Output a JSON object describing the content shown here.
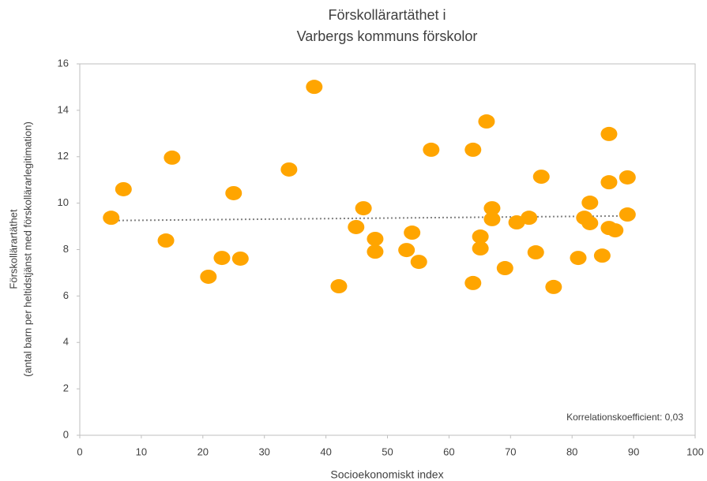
{
  "chart_data": {
    "type": "scatter",
    "title": [
      "Förskollärartäthet i",
      "Varbergs kommuns förskolor"
    ],
    "xlabel": "Socioekonomiskt index",
    "ylabel": [
      "Förskollärartäthet",
      "(antal barn per heltidstjänst med förskollärarlegitimation)"
    ],
    "annotation": "Korrelationskoefficient: 0,03",
    "color": "#ffa500",
    "x": [
      5.1,
      7.1,
      14.0,
      15.0,
      20.9,
      23.1,
      25.0,
      26.1,
      34.0,
      38.1,
      42.1,
      44.9,
      46.1,
      48.0,
      48.0,
      53.1,
      54.0,
      55.1,
      57.1,
      63.9,
      63.9,
      65.1,
      65.1,
      66.1,
      67.0,
      67.0,
      69.1,
      71.0,
      73.0,
      74.1,
      75.0,
      77.0,
      81.0,
      82.0,
      82.9,
      82.9,
      84.9,
      86.0,
      86.0,
      86.0,
      87.0,
      89.0,
      89.0
    ],
    "values": [
      9.37,
      10.6,
      8.39,
      11.96,
      6.83,
      7.64,
      10.43,
      7.61,
      11.45,
      15.01,
      6.42,
      8.97,
      9.78,
      8.46,
      7.91,
      7.98,
      8.73,
      7.47,
      12.3,
      12.3,
      6.56,
      8.56,
      8.05,
      13.52,
      9.78,
      9.31,
      7.2,
      9.17,
      9.37,
      7.88,
      11.14,
      6.39,
      7.64,
      9.37,
      10.02,
      9.14,
      7.74,
      12.98,
      10.9,
      8.93,
      8.83,
      11.11,
      9.51
    ],
    "trendline": {
      "color": "#808080",
      "x": [
        5,
        89
      ],
      "values": [
        9.25,
        9.45
      ]
    },
    "xlim": [
      0,
      100
    ],
    "xticks": [
      0,
      10,
      20,
      30,
      40,
      50,
      60,
      70,
      80,
      90,
      100
    ],
    "ylim": [
      0,
      16
    ],
    "yticks": [
      0,
      2,
      4,
      6,
      8,
      10,
      12,
      14,
      16
    ],
    "grid": false
  }
}
